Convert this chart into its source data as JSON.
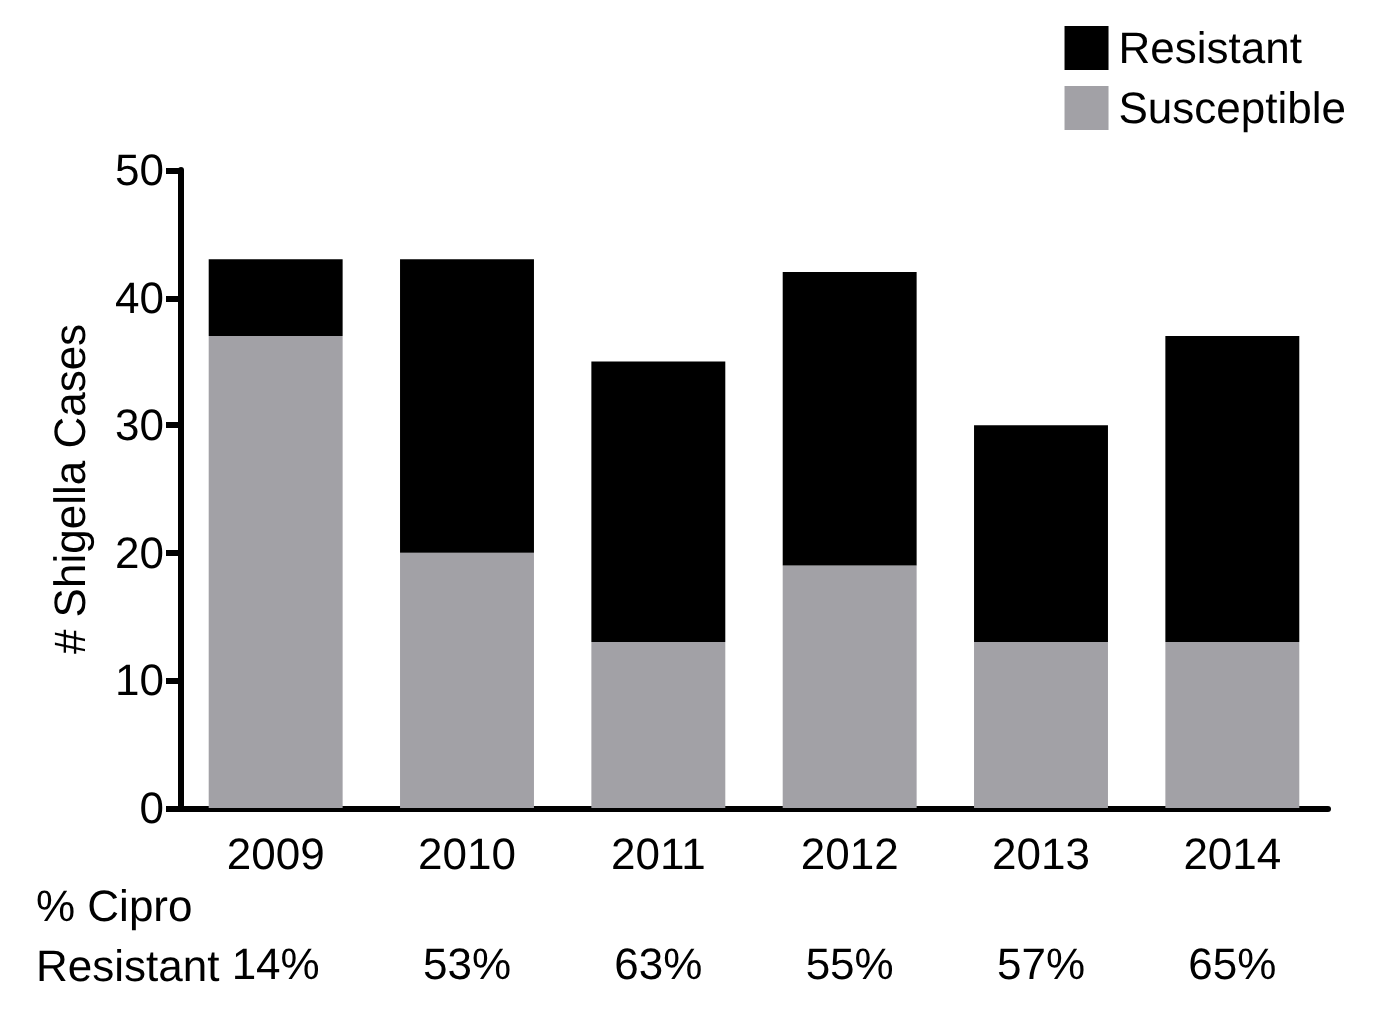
{
  "chart_data": {
    "type": "bar",
    "stacked": true,
    "ylabel": "# Shigella Cases",
    "categories": [
      "2009",
      "2010",
      "2011",
      "2012",
      "2013",
      "2014"
    ],
    "series": [
      {
        "name": "Susceptible",
        "color": "#a2a1a6",
        "values": [
          37,
          20,
          13,
          19,
          13,
          13
        ]
      },
      {
        "name": "Resistant",
        "color": "#000000",
        "values": [
          6,
          23,
          22,
          23,
          17,
          24
        ]
      }
    ],
    "ylim": [
      0,
      50
    ],
    "yticks": [
      0,
      10,
      20,
      30,
      40,
      50
    ],
    "grid": false,
    "legend": "top right",
    "annotations": [
      "% Cipro\nResistant",
      "14%",
      "53%",
      "63%",
      "55%",
      "57%",
      "65%"
    ]
  }
}
